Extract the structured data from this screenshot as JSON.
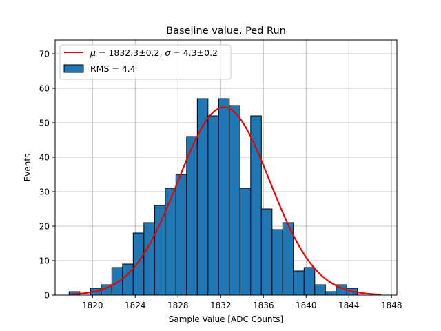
{
  "chart_data": {
    "type": "bar",
    "title": "Baseline value, Ped Run",
    "xlabel": "Sample Value [ADC Counts]",
    "ylabel": "Events",
    "xlim": [
      1816.5,
      1848.5
    ],
    "ylim": [
      0,
      74
    ],
    "grid": true,
    "legend_position": "top-left",
    "bin_edges": [
      1817.81,
      1818.81,
      1819.81,
      1820.81,
      1821.81,
      1822.81,
      1823.81,
      1824.81,
      1825.81,
      1826.81,
      1827.81,
      1828.81,
      1829.81,
      1830.81,
      1831.81,
      1832.81,
      1833.81,
      1834.81,
      1835.81,
      1836.81,
      1837.81,
      1838.81,
      1839.81,
      1840.81,
      1841.81,
      1842.81,
      1843.81,
      1844.81,
      1845.81
    ],
    "counts": [
      1,
      0,
      2,
      3,
      8,
      9,
      18,
      21,
      26,
      31,
      35,
      46,
      57,
      52,
      57,
      55,
      31,
      52,
      25,
      19,
      21,
      7,
      8,
      3,
      1,
      3,
      2,
      0
    ],
    "fit": {
      "mu": 1832.3,
      "sigma": 4.3,
      "amplitude": 54.5,
      "x_range": [
        1818,
        1847
      ]
    },
    "xticks": [
      "1820",
      "1824",
      "1828",
      "1832",
      "1836",
      "1840",
      "1844",
      "1848"
    ],
    "yticks": [
      "0",
      "10",
      "20",
      "30",
      "40",
      "50",
      "60",
      "70"
    ],
    "series": [
      {
        "name": "μ = 1832.3±0.2, σ = 4.3±0.2",
        "kind": "line",
        "color": "#ee0000"
      },
      {
        "name": "RMS = 4.4",
        "kind": "histogram",
        "color": "#1f77b4"
      }
    ]
  },
  "legend": {
    "fit_mu_symbol": "μ",
    "fit_mu_text": " = 1832.3±0.2, ",
    "fit_sigma_symbol": "σ",
    "fit_sigma_text": " = 4.3±0.2",
    "hist_label": "RMS = 4.4"
  },
  "colors": {
    "bar": "#1f77b4",
    "edge": "#000000",
    "fit": "#ee0000",
    "grid": "#b0b0b0"
  }
}
